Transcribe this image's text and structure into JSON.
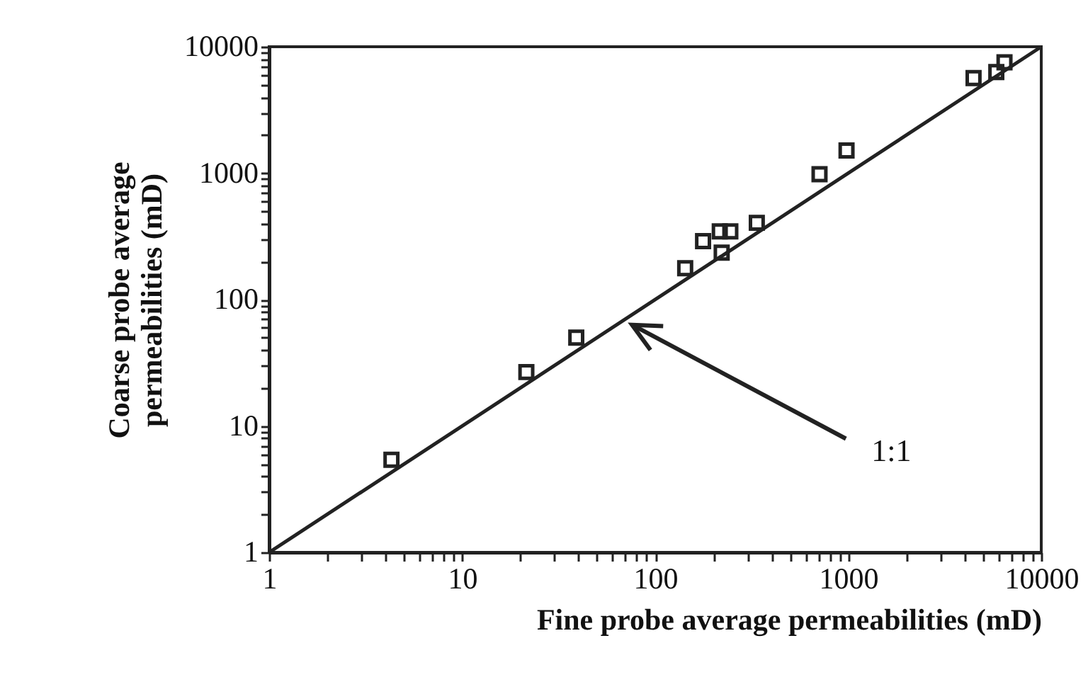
{
  "chart_data": {
    "type": "scatter",
    "xlabel": "Fine probe average permeabilities (mD)",
    "ylabel": "Coarse probe average\npermeabilities (mD)",
    "log": "xy",
    "grid": false,
    "xlim": [
      1,
      10000
    ],
    "ylim": [
      1,
      10000
    ],
    "xticks": [
      1,
      {
        "value": 2,
        "label": null
      },
      {
        "value": 3,
        "label": null
      },
      {
        "value": 4,
        "label": null
      },
      {
        "value": 5,
        "label": null
      },
      {
        "value": 6,
        "label": null
      },
      {
        "value": 7,
        "label": null
      },
      {
        "value": 8,
        "label": null
      },
      {
        "value": 9,
        "label": null
      },
      10,
      {
        "value": 20,
        "label": null
      },
      {
        "value": 30,
        "label": null
      },
      {
        "value": 40,
        "label": null
      },
      {
        "value": 50,
        "label": null
      },
      {
        "value": 60,
        "label": null
      },
      {
        "value": 70,
        "label": null
      },
      {
        "value": 80,
        "label": null
      },
      {
        "value": 90,
        "label": null
      },
      100,
      {
        "value": 200,
        "label": null
      },
      {
        "value": 300,
        "label": null
      },
      {
        "value": 400,
        "label": null
      },
      {
        "value": 500,
        "label": null
      },
      {
        "value": 600,
        "label": null
      },
      {
        "value": 700,
        "label": null
      },
      {
        "value": 800,
        "label": null
      },
      {
        "value": 900,
        "label": null
      },
      1000,
      {
        "value": 2000,
        "label": null
      },
      {
        "value": 3000,
        "label": null
      },
      {
        "value": 4000,
        "label": null
      },
      {
        "value": 5000,
        "label": null
      },
      {
        "value": 6000,
        "label": null
      },
      {
        "value": 7000,
        "label": null
      },
      {
        "value": 8000,
        "label": null
      },
      {
        "value": 9000,
        "label": null
      },
      10000
    ],
    "yticks": [
      1,
      {
        "value": 2,
        "label": null
      },
      {
        "value": 3,
        "label": null
      },
      {
        "value": 4,
        "label": null
      },
      {
        "value": 5,
        "label": null
      },
      {
        "value": 6,
        "label": null
      },
      {
        "value": 7,
        "label": null
      },
      {
        "value": 8,
        "label": null
      },
      {
        "value": 9,
        "label": null
      },
      10,
      {
        "value": 20,
        "label": null
      },
      {
        "value": 30,
        "label": null
      },
      {
        "value": 40,
        "label": null
      },
      {
        "value": 50,
        "label": null
      },
      {
        "value": 60,
        "label": null
      },
      {
        "value": 70,
        "label": null
      },
      {
        "value": 80,
        "label": null
      },
      {
        "value": 90,
        "label": null
      },
      100,
      {
        "value": 200,
        "label": null
      },
      {
        "value": 300,
        "label": null
      },
      {
        "value": 400,
        "label": null
      },
      {
        "value": 500,
        "label": null
      },
      {
        "value": 600,
        "label": null
      },
      {
        "value": 700,
        "label": null
      },
      {
        "value": 800,
        "label": null
      },
      {
        "value": 900,
        "label": null
      },
      1000,
      {
        "value": 2000,
        "label": null
      },
      {
        "value": 3000,
        "label": null
      },
      {
        "value": 4000,
        "label": null
      },
      {
        "value": 5000,
        "label": null
      },
      {
        "value": 6000,
        "label": null
      },
      {
        "value": 7000,
        "label": null
      },
      {
        "value": 8000,
        "label": null
      },
      {
        "value": 9000,
        "label": null
      },
      10000
    ],
    "annotations": [
      "1:1"
    ],
    "series": [
      {
        "type": "line",
        "color": "#222222",
        "x": [
          1,
          10000
        ],
        "values": [
          1,
          10000
        ]
      },
      {
        "marker": "square",
        "color": "#222222",
        "x": [
          4.3,
          21.5,
          39,
          143,
          177,
          221,
          216,
          245,
          336,
          710,
          980,
          4460,
          5850,
          6450
        ],
        "values": [
          5.4,
          26.7,
          50,
          177,
          290,
          235,
          346,
          346,
          405,
          980,
          1510,
          5650,
          6300,
          7530
        ]
      }
    ]
  }
}
